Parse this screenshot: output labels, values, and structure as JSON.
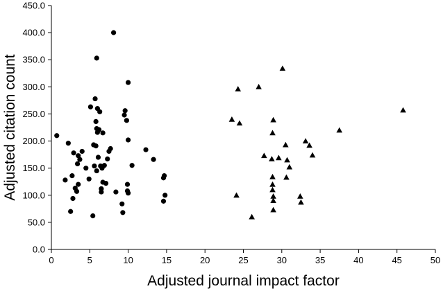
{
  "chart_data": {
    "type": "scatter",
    "xlabel": "Adjusted journal impact factor",
    "ylabel": "Adjusted citation count",
    "xlim": [
      0,
      50
    ],
    "ylim": [
      0,
      450
    ],
    "x_ticks": [
      "0",
      "5",
      "10",
      "15",
      "20",
      "25",
      "30",
      "35",
      "40",
      "45",
      "50"
    ],
    "y_ticks": [
      "0.0",
      "50.0",
      "100.0",
      "150.0",
      "200.0",
      "250.0",
      "300.0",
      "350.0",
      "400.0",
      "450.0"
    ],
    "grid": false,
    "legend": "none",
    "series": [
      {
        "marker": "circle",
        "color": "#000000",
        "points": [
          [
            0.7,
            210
          ],
          [
            1.8,
            128
          ],
          [
            2.2,
            196
          ],
          [
            2.5,
            70
          ],
          [
            2.7,
            136
          ],
          [
            2.8,
            94
          ],
          [
            2.9,
            178
          ],
          [
            3.1,
            113
          ],
          [
            3.3,
            107
          ],
          [
            3.4,
            158
          ],
          [
            3.5,
            120
          ],
          [
            3.5,
            173
          ],
          [
            3.7,
            166
          ],
          [
            4.0,
            181
          ],
          [
            4.5,
            150
          ],
          [
            4.9,
            130
          ],
          [
            5.1,
            263
          ],
          [
            5.4,
            62
          ],
          [
            5.5,
            193
          ],
          [
            5.6,
            154
          ],
          [
            5.7,
            278
          ],
          [
            5.8,
            236
          ],
          [
            5.9,
            223
          ],
          [
            5.9,
            353
          ],
          [
            5.8,
            191
          ],
          [
            5.9,
            145
          ],
          [
            6.0,
            260
          ],
          [
            6.0,
            216
          ],
          [
            6.2,
            221
          ],
          [
            6.3,
            254
          ],
          [
            6.1,
            170
          ],
          [
            6.4,
            154
          ],
          [
            6.5,
            112
          ],
          [
            6.5,
            106
          ],
          [
            6.6,
            150
          ],
          [
            6.7,
            215
          ],
          [
            6.7,
            124
          ],
          [
            6.9,
            155
          ],
          [
            7.1,
            122
          ],
          [
            7.3,
            167
          ],
          [
            7.5,
            181
          ],
          [
            7.7,
            186
          ],
          [
            8.1,
            400
          ],
          [
            8.4,
            106
          ],
          [
            9.2,
            84
          ],
          [
            9.3,
            68
          ],
          [
            9.5,
            248
          ],
          [
            9.6,
            256
          ],
          [
            9.8,
            238
          ],
          [
            9.9,
            108
          ],
          [
            9.9,
            120
          ],
          [
            10.0,
            104
          ],
          [
            10.0,
            202
          ],
          [
            10.0,
            308
          ],
          [
            10.5,
            155
          ],
          [
            12.3,
            184
          ],
          [
            13.3,
            166
          ],
          [
            14.6,
            89
          ],
          [
            14.6,
            132
          ],
          [
            14.7,
            136
          ],
          [
            14.8,
            100
          ]
        ]
      },
      {
        "marker": "triangle",
        "color": "#000000",
        "points": [
          [
            23.5,
            240
          ],
          [
            24.1,
            100
          ],
          [
            24.3,
            296
          ],
          [
            24.5,
            233
          ],
          [
            26.1,
            60
          ],
          [
            27.0,
            300
          ],
          [
            27.7,
            173
          ],
          [
            28.7,
            167
          ],
          [
            28.8,
            215
          ],
          [
            28.9,
            239
          ],
          [
            28.8,
            134
          ],
          [
            28.8,
            120
          ],
          [
            28.8,
            110
          ],
          [
            28.9,
            98
          ],
          [
            28.9,
            90
          ],
          [
            28.9,
            73
          ],
          [
            29.6,
            169
          ],
          [
            30.1,
            334
          ],
          [
            30.5,
            193
          ],
          [
            30.6,
            133
          ],
          [
            30.7,
            165
          ],
          [
            31.0,
            152
          ],
          [
            32.4,
            98
          ],
          [
            32.5,
            87
          ],
          [
            33.1,
            200
          ],
          [
            33.6,
            192
          ],
          [
            34.0,
            174
          ],
          [
            37.5,
            220
          ],
          [
            45.8,
            257
          ]
        ]
      }
    ]
  }
}
